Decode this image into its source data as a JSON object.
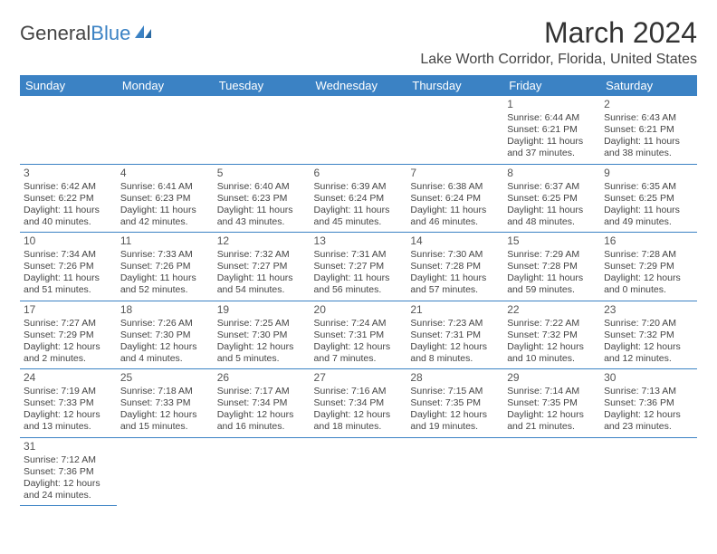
{
  "logo": {
    "part1": "General",
    "part2": "Blue"
  },
  "title": "March 2024",
  "location": "Lake Worth Corridor, Florida, United States",
  "colors": {
    "header_bg": "#3b82c4",
    "header_text": "#ffffff",
    "border": "#3b82c4",
    "text": "#444444"
  },
  "day_headers": [
    "Sunday",
    "Monday",
    "Tuesday",
    "Wednesday",
    "Thursday",
    "Friday",
    "Saturday"
  ],
  "weeks": [
    [
      null,
      null,
      null,
      null,
      null,
      {
        "n": "1",
        "sr": "Sunrise: 6:44 AM",
        "ss": "Sunset: 6:21 PM",
        "dl": "Daylight: 11 hours and 37 minutes."
      },
      {
        "n": "2",
        "sr": "Sunrise: 6:43 AM",
        "ss": "Sunset: 6:21 PM",
        "dl": "Daylight: 11 hours and 38 minutes."
      }
    ],
    [
      {
        "n": "3",
        "sr": "Sunrise: 6:42 AM",
        "ss": "Sunset: 6:22 PM",
        "dl": "Daylight: 11 hours and 40 minutes."
      },
      {
        "n": "4",
        "sr": "Sunrise: 6:41 AM",
        "ss": "Sunset: 6:23 PM",
        "dl": "Daylight: 11 hours and 42 minutes."
      },
      {
        "n": "5",
        "sr": "Sunrise: 6:40 AM",
        "ss": "Sunset: 6:23 PM",
        "dl": "Daylight: 11 hours and 43 minutes."
      },
      {
        "n": "6",
        "sr": "Sunrise: 6:39 AM",
        "ss": "Sunset: 6:24 PM",
        "dl": "Daylight: 11 hours and 45 minutes."
      },
      {
        "n": "7",
        "sr": "Sunrise: 6:38 AM",
        "ss": "Sunset: 6:24 PM",
        "dl": "Daylight: 11 hours and 46 minutes."
      },
      {
        "n": "8",
        "sr": "Sunrise: 6:37 AM",
        "ss": "Sunset: 6:25 PM",
        "dl": "Daylight: 11 hours and 48 minutes."
      },
      {
        "n": "9",
        "sr": "Sunrise: 6:35 AM",
        "ss": "Sunset: 6:25 PM",
        "dl": "Daylight: 11 hours and 49 minutes."
      }
    ],
    [
      {
        "n": "10",
        "sr": "Sunrise: 7:34 AM",
        "ss": "Sunset: 7:26 PM",
        "dl": "Daylight: 11 hours and 51 minutes."
      },
      {
        "n": "11",
        "sr": "Sunrise: 7:33 AM",
        "ss": "Sunset: 7:26 PM",
        "dl": "Daylight: 11 hours and 52 minutes."
      },
      {
        "n": "12",
        "sr": "Sunrise: 7:32 AM",
        "ss": "Sunset: 7:27 PM",
        "dl": "Daylight: 11 hours and 54 minutes."
      },
      {
        "n": "13",
        "sr": "Sunrise: 7:31 AM",
        "ss": "Sunset: 7:27 PM",
        "dl": "Daylight: 11 hours and 56 minutes."
      },
      {
        "n": "14",
        "sr": "Sunrise: 7:30 AM",
        "ss": "Sunset: 7:28 PM",
        "dl": "Daylight: 11 hours and 57 minutes."
      },
      {
        "n": "15",
        "sr": "Sunrise: 7:29 AM",
        "ss": "Sunset: 7:28 PM",
        "dl": "Daylight: 11 hours and 59 minutes."
      },
      {
        "n": "16",
        "sr": "Sunrise: 7:28 AM",
        "ss": "Sunset: 7:29 PM",
        "dl": "Daylight: 12 hours and 0 minutes."
      }
    ],
    [
      {
        "n": "17",
        "sr": "Sunrise: 7:27 AM",
        "ss": "Sunset: 7:29 PM",
        "dl": "Daylight: 12 hours and 2 minutes."
      },
      {
        "n": "18",
        "sr": "Sunrise: 7:26 AM",
        "ss": "Sunset: 7:30 PM",
        "dl": "Daylight: 12 hours and 4 minutes."
      },
      {
        "n": "19",
        "sr": "Sunrise: 7:25 AM",
        "ss": "Sunset: 7:30 PM",
        "dl": "Daylight: 12 hours and 5 minutes."
      },
      {
        "n": "20",
        "sr": "Sunrise: 7:24 AM",
        "ss": "Sunset: 7:31 PM",
        "dl": "Daylight: 12 hours and 7 minutes."
      },
      {
        "n": "21",
        "sr": "Sunrise: 7:23 AM",
        "ss": "Sunset: 7:31 PM",
        "dl": "Daylight: 12 hours and 8 minutes."
      },
      {
        "n": "22",
        "sr": "Sunrise: 7:22 AM",
        "ss": "Sunset: 7:32 PM",
        "dl": "Daylight: 12 hours and 10 minutes."
      },
      {
        "n": "23",
        "sr": "Sunrise: 7:20 AM",
        "ss": "Sunset: 7:32 PM",
        "dl": "Daylight: 12 hours and 12 minutes."
      }
    ],
    [
      {
        "n": "24",
        "sr": "Sunrise: 7:19 AM",
        "ss": "Sunset: 7:33 PM",
        "dl": "Daylight: 12 hours and 13 minutes."
      },
      {
        "n": "25",
        "sr": "Sunrise: 7:18 AM",
        "ss": "Sunset: 7:33 PM",
        "dl": "Daylight: 12 hours and 15 minutes."
      },
      {
        "n": "26",
        "sr": "Sunrise: 7:17 AM",
        "ss": "Sunset: 7:34 PM",
        "dl": "Daylight: 12 hours and 16 minutes."
      },
      {
        "n": "27",
        "sr": "Sunrise: 7:16 AM",
        "ss": "Sunset: 7:34 PM",
        "dl": "Daylight: 12 hours and 18 minutes."
      },
      {
        "n": "28",
        "sr": "Sunrise: 7:15 AM",
        "ss": "Sunset: 7:35 PM",
        "dl": "Daylight: 12 hours and 19 minutes."
      },
      {
        "n": "29",
        "sr": "Sunrise: 7:14 AM",
        "ss": "Sunset: 7:35 PM",
        "dl": "Daylight: 12 hours and 21 minutes."
      },
      {
        "n": "30",
        "sr": "Sunrise: 7:13 AM",
        "ss": "Sunset: 7:36 PM",
        "dl": "Daylight: 12 hours and 23 minutes."
      }
    ],
    [
      {
        "n": "31",
        "sr": "Sunrise: 7:12 AM",
        "ss": "Sunset: 7:36 PM",
        "dl": "Daylight: 12 hours and 24 minutes."
      },
      null,
      null,
      null,
      null,
      null,
      null
    ]
  ]
}
